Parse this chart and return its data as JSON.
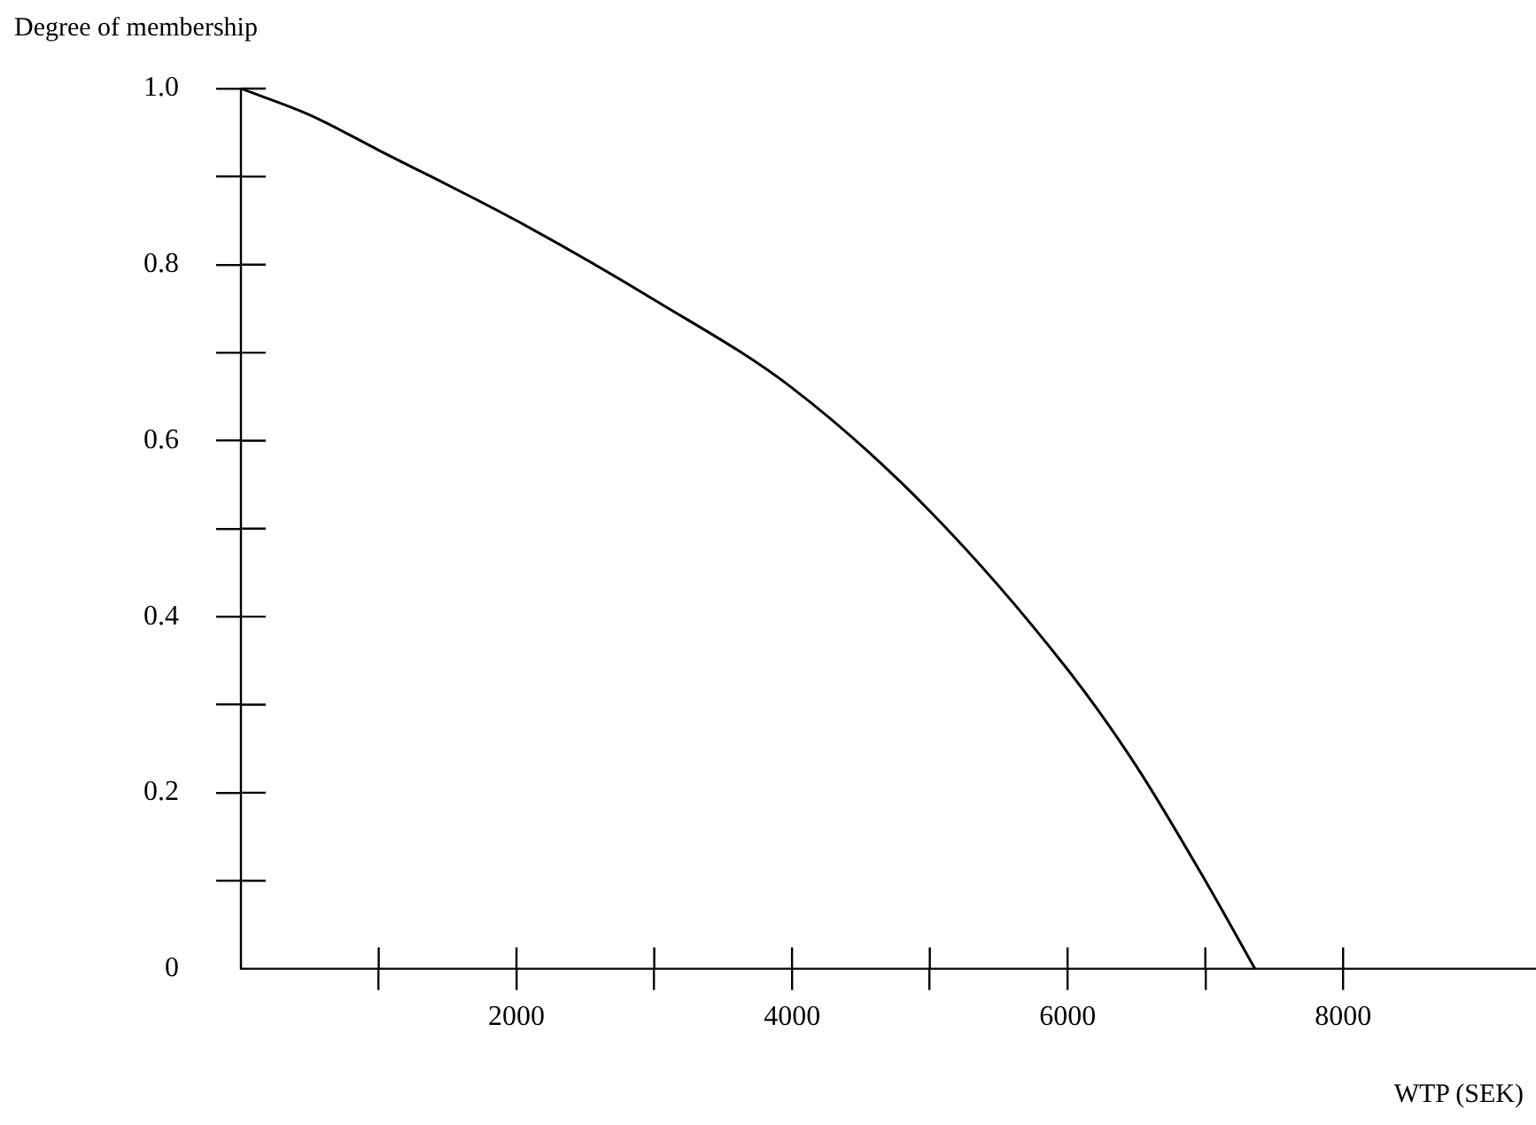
{
  "chart_data": {
    "type": "line",
    "xlabel": "WTP (SEK)",
    "ylabel": "Degree of membership",
    "series": [
      {
        "color": "#000000",
        "x": [
          0,
          500,
          1000,
          2000,
          3000,
          4000,
          5000,
          6000,
          6500,
          7000,
          7360
        ],
        "values": [
          1.0,
          0.97,
          0.93,
          0.85,
          0.76,
          0.66,
          0.52,
          0.34,
          0.23,
          0.1,
          0
        ]
      }
    ],
    "xlim": [
      0,
      9400
    ],
    "ylim": [
      0,
      1
    ],
    "xticks": [
      {
        "value": 1000,
        "label": null
      },
      2000,
      {
        "value": 3000,
        "label": null
      },
      4000,
      {
        "value": 5000,
        "label": null
      },
      6000,
      {
        "value": 7000,
        "label": null
      },
      8000
    ],
    "yticks": [
      0,
      {
        "value": 0.1,
        "label": null
      },
      0.2,
      {
        "value": 0.3,
        "label": null
      },
      0.4,
      {
        "value": 0.5,
        "label": null
      },
      0.6,
      {
        "value": 0.7,
        "label": null
      },
      0.8,
      {
        "value": 0.9,
        "label": null
      },
      {
        "value": 1,
        "label": "1.0"
      }
    ],
    "grid": false,
    "legend": false,
    "marker": "none",
    "line_style": "solid"
  }
}
